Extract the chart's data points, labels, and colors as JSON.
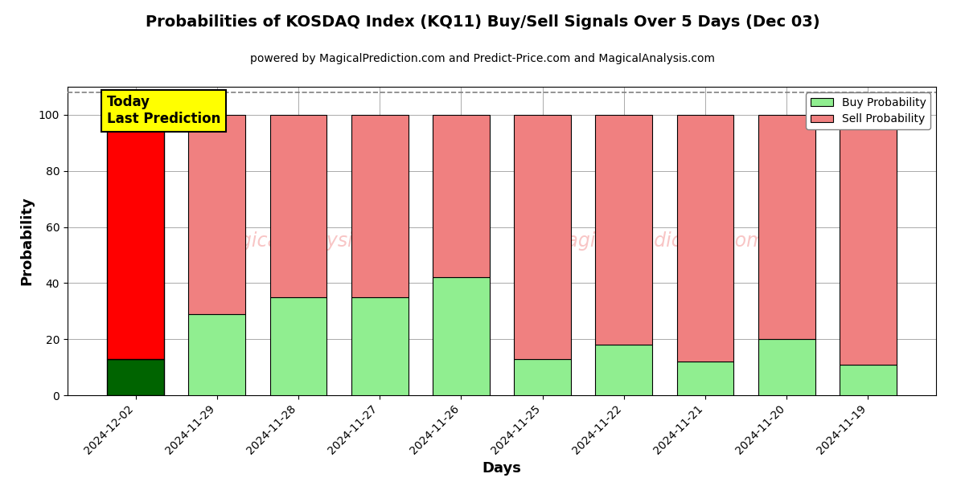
{
  "title": "Probabilities of KOSDAQ Index (KQ11) Buy/Sell Signals Over 5 Days (Dec 03)",
  "subtitle": "powered by MagicalPrediction.com and Predict-Price.com and MagicalAnalysis.com",
  "xlabel": "Days",
  "ylabel": "Probability",
  "dates": [
    "2024-12-02",
    "2024-11-29",
    "2024-11-28",
    "2024-11-27",
    "2024-11-26",
    "2024-11-25",
    "2024-11-22",
    "2024-11-21",
    "2024-11-20",
    "2024-11-19"
  ],
  "buy_values": [
    13,
    29,
    35,
    35,
    42,
    13,
    18,
    12,
    20,
    11
  ],
  "sell_values": [
    87,
    71,
    65,
    65,
    58,
    87,
    82,
    88,
    80,
    89
  ],
  "buy_color_bright": "#006400",
  "sell_color_bright": "#ff0000",
  "buy_color_light": "#90EE90",
  "sell_color_light": "#F08080",
  "today_box_color": "#ffff00",
  "today_label": "Today\nLast Prediction",
  "ylim": [
    0,
    110
  ],
  "dashed_line_y": 108,
  "legend_buy": "Buy Probability",
  "legend_sell": "Sell Probability",
  "bar_width": 0.7,
  "background_color": "#ffffff",
  "grid_color": "#aaaaaa"
}
